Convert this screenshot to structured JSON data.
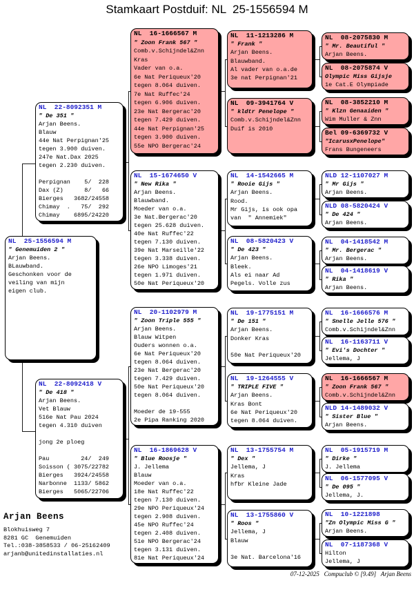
{
  "title": "Stamkaart Postduif: NL  25-1556594 M",
  "colors": {
    "highlight_pink": "#ffa6a6",
    "ring_blue": "#2222cc",
    "text_black": "#000000"
  },
  "subject": {
    "ring": "NL  25-1556594 M",
    "name": "\" Genemuiden 2 \"",
    "highlight": false,
    "lines": [
      "Arjan Beens.",
      "BLauwband.",
      "Geschonken voor de",
      "veiling van mijn",
      "eigen club."
    ]
  },
  "parents": [
    {
      "ring": "NL  22-8092351 M",
      "name": "\" De 351 \"",
      "highlight": false,
      "lines": [
        "Arjan Beens.",
        "Blauw",
        "44e Nat Perpignan'25",
        "tegen 3.900 duiven.",
        "247e Nat.Dax 2025",
        "tegen 2.230 duiven.",
        "",
        "Perpignan    5/  228",
        "Dax (Z)      8/   66",
        "Bierges   3682/24558",
        "Chimay  .   75/  292",
        "Chimay    6895/24220"
      ]
    },
    {
      "ring": "NL  22-8092418 V",
      "name": "\" De 418 \"",
      "highlight": false,
      "lines": [
        "Arjan Beens.",
        "Vet Blauw",
        "516e Nat Pau 2024",
        "tegen 4.310 duiven",
        "",
        "jong 2e ploeg",
        "",
        "Pau         24/  249",
        "Soisson ( 3075/22782",
        "Bierges   3924/24558",
        "Narbonne  1133/ 5862",
        "Bierges   5065/22706"
      ]
    }
  ],
  "grandparents": [
    {
      "ring": "NL  16-1666567 M",
      "name": "\" Zoon Frank 567 \"",
      "highlight": true,
      "lines": [
        "Comb.v.Schijndel&Znn",
        "Kras",
        "Vader van o.a.",
        "6e Nat Periqueux'20",
        "tegen 8.064 duiven.",
        "7e Nat Ruffec'24",
        "tegen 6.906 duiven.",
        "23e Nat Bergerac'20",
        "tegen 7.429 duiven.",
        "44e Nat Perpignan'25",
        "tegen 3.900 duiven.",
        "55e NPO Bergerac'24"
      ]
    },
    {
      "ring": "NL  15-1674650 V",
      "name": "\" New Rika \"",
      "highlight": false,
      "lines": [
        "Arjan Beens.",
        "Blauwband.",
        "Moeder van o.a.",
        "3e Nat.Bergerac'20",
        "tegen 25.628 duiven.",
        "40e Nat Ruffec'22",
        "tegen 7.130 duiven.",
        "39e Nat Marseille'22",
        "tegen 3.338 duiven.",
        "26e NPO Limoges'21",
        "tegen 1.971 duiven.",
        "50e Nat Periqueux'20"
      ]
    },
    {
      "ring": "NL  20-1102979 M",
      "name": "\" Zoon Triple 555 \"",
      "highlight": false,
      "lines": [
        "Arjan Beens.",
        "Blauw Witpen",
        "Ouders wonnen o.a.",
        "6e Nat Periqueux'20",
        "tegen 8.064 duiven.",
        "23e Nat Bergerac'20",
        "tegen 7.429 duiven.",
        "50e Nat Periqueux'20",
        "tegen 8.064 duiven.",
        "",
        "Moeder de 19-555",
        "2e Pipa Ranking 2020"
      ]
    },
    {
      "ring": "NL  16-1869628 V",
      "name": "\" Blue Roosje \"",
      "highlight": false,
      "lines": [
        "J. Jellema",
        "Blauw",
        "Moeder van o.a.",
        "18e Nat Ruffec'22",
        "tegen 7.130 duiven.",
        "29e NPO Periqueux'24",
        "tegen 2.908 duiven.",
        "45e NPO Ruffec'24",
        "tegen 2.408 duiven.",
        "51e NPO Bergerac'24",
        "tegen 3.131 duiven.",
        "81e Nat Periqueux'24"
      ]
    }
  ],
  "great_grandparents": [
    {
      "ring": "NL  11-1213286 M",
      "name": "\" Frank \"",
      "highlight": true,
      "lines": [
        "Arjan Beens.",
        "Blauwband.",
        "Al vader van o.a.de",
        "3e nat Perpignan'21"
      ]
    },
    {
      "ring": "NL  09-3941764 V",
      "name": "\" kldtr Penelope \"",
      "highlight": true,
      "lines": [
        "Comb.v.Schijndel&Znn",
        "Duif is 2010"
      ]
    },
    {
      "ring": "NL  14-1542665 M",
      "name": "\" Rooie Gijs \"",
      "highlight": false,
      "lines": [
        "Arjan Beens.",
        "Rood.",
        "Mr Gijs, is ook opa",
        "van  \" Annemiek\""
      ]
    },
    {
      "ring": "NL  08-5820423 V",
      "name": "\" De 423 \"",
      "highlight": false,
      "lines": [
        "Arjan Beens.",
        "Bleek.",
        "Als ei naar Ad",
        "Pegels. Volle zus"
      ]
    },
    {
      "ring": "NL  19-1775151 M",
      "name": "\" De 151 \"",
      "highlight": false,
      "lines": [
        "Arjan Beens.",
        "Donker Kras",
        "",
        "50e Nat Periqueux'20"
      ]
    },
    {
      "ring": "NL  19-1264555 V",
      "name": "\" TRIPLE FIVE \"",
      "highlight": false,
      "lines": [
        "Arjan Beens.",
        "Kras Bont",
        "6e Nat Periqueux'20",
        "tegen 8.064 duiven."
      ]
    },
    {
      "ring": "NL  13-1755754 M",
      "name": "\" Dex \"",
      "highlight": false,
      "lines": [
        "Jellema, J",
        "Kras",
        "hfbr Kleine Jade"
      ]
    },
    {
      "ring": "NL  13-1755860 V",
      "name": "\" Roos \"",
      "highlight": false,
      "lines": [
        "Jellema, J",
        "Blauw",
        "",
        "3e Nat. Barcelona'16"
      ]
    }
  ],
  "great_great_grandparents": [
    {
      "ring": "NL  08-2075830 M",
      "name": "\" Mr. Beautiful \"",
      "highlight": true,
      "lines": [
        "Arjan Beens."
      ]
    },
    {
      "ring": "NL  08-2075874 V",
      "name": "Olympic Miss Gijsje",
      "highlight": true,
      "lines": [
        "1e Cat.E Olympiade"
      ]
    },
    {
      "ring": "NL  08-3852210 M",
      "name": "\" Klzn Genaaiden \"",
      "highlight": true,
      "lines": [
        "Wim Muller & Znn"
      ]
    },
    {
      "ring": "Bel 09-6369732 V",
      "name": "\"IcarusxPenelope\"",
      "highlight": true,
      "lines": [
        "Frans Bungeneers"
      ]
    },
    {
      "ring": "NLD 12-1107027 M",
      "name": "\" Mr Gijs \"",
      "highlight": false,
      "lines": [
        "Arjan Beens."
      ]
    },
    {
      "ring": "NLD 08-5820424 V",
      "name": "\" De 424 \"",
      "highlight": false,
      "lines": [
        "Arjan Beens."
      ]
    },
    {
      "ring": "NL  04-1418542 M",
      "name": "\" Mr. Bergerac \"",
      "highlight": false,
      "lines": [
        "Arjan Beens."
      ]
    },
    {
      "ring": "NL  04-1418619 V",
      "name": "\" Rika \"",
      "highlight": false,
      "lines": [
        "Arjan Beens."
      ]
    },
    {
      "ring": "NL  16-1666576 M",
      "name": "\" Snelle Jelle 576 \"",
      "highlight": false,
      "lines": [
        "Comb.v.Schijndel&Znn"
      ]
    },
    {
      "ring": "NL  16-1163711 V",
      "name": "\" Evi's Dochter \"",
      "highlight": false,
      "lines": [
        "Jellema, J"
      ]
    },
    {
      "ring": "NL  16-1666567 M",
      "name": "\" Zoon Frank 567 \"",
      "highlight": true,
      "lines": [
        "Comb.v.Schijndel&Znn"
      ]
    },
    {
      "ring": "NLD 14-1489032 V",
      "name": "\" Sister Blue \"",
      "highlight": false,
      "lines": [
        "Arjan Beens."
      ]
    },
    {
      "ring": "NL  05-1915719 M",
      "name": "\" Dirke \"",
      "highlight": false,
      "lines": [
        "J. Jellema"
      ]
    },
    {
      "ring": "NL  06-1577095 V",
      "name": "\" De 095 \"",
      "highlight": false,
      "lines": [
        "Jellema, J."
      ]
    },
    {
      "ring": "NL  10-1221898",
      "name": "\"Zn Olympic Miss G \"",
      "highlight": false,
      "lines": [
        "Arjan Beens."
      ]
    },
    {
      "ring": "NL  07-1187368 V",
      "name": "",
      "highlight": false,
      "lines": [
        "Hilton",
        "Jellema, J"
      ]
    }
  ],
  "owner": {
    "name": "Arjan Beens",
    "lines": [
      "Blokhuisweg 7",
      "8281 GC  Genemuiden",
      "Tel.:038-3858533 / 06-25162409",
      "arjanb@unitedinstallaties.nl"
    ]
  },
  "footer": "07-12-2025   Compuclub © [9.49]   Arjan Beens"
}
